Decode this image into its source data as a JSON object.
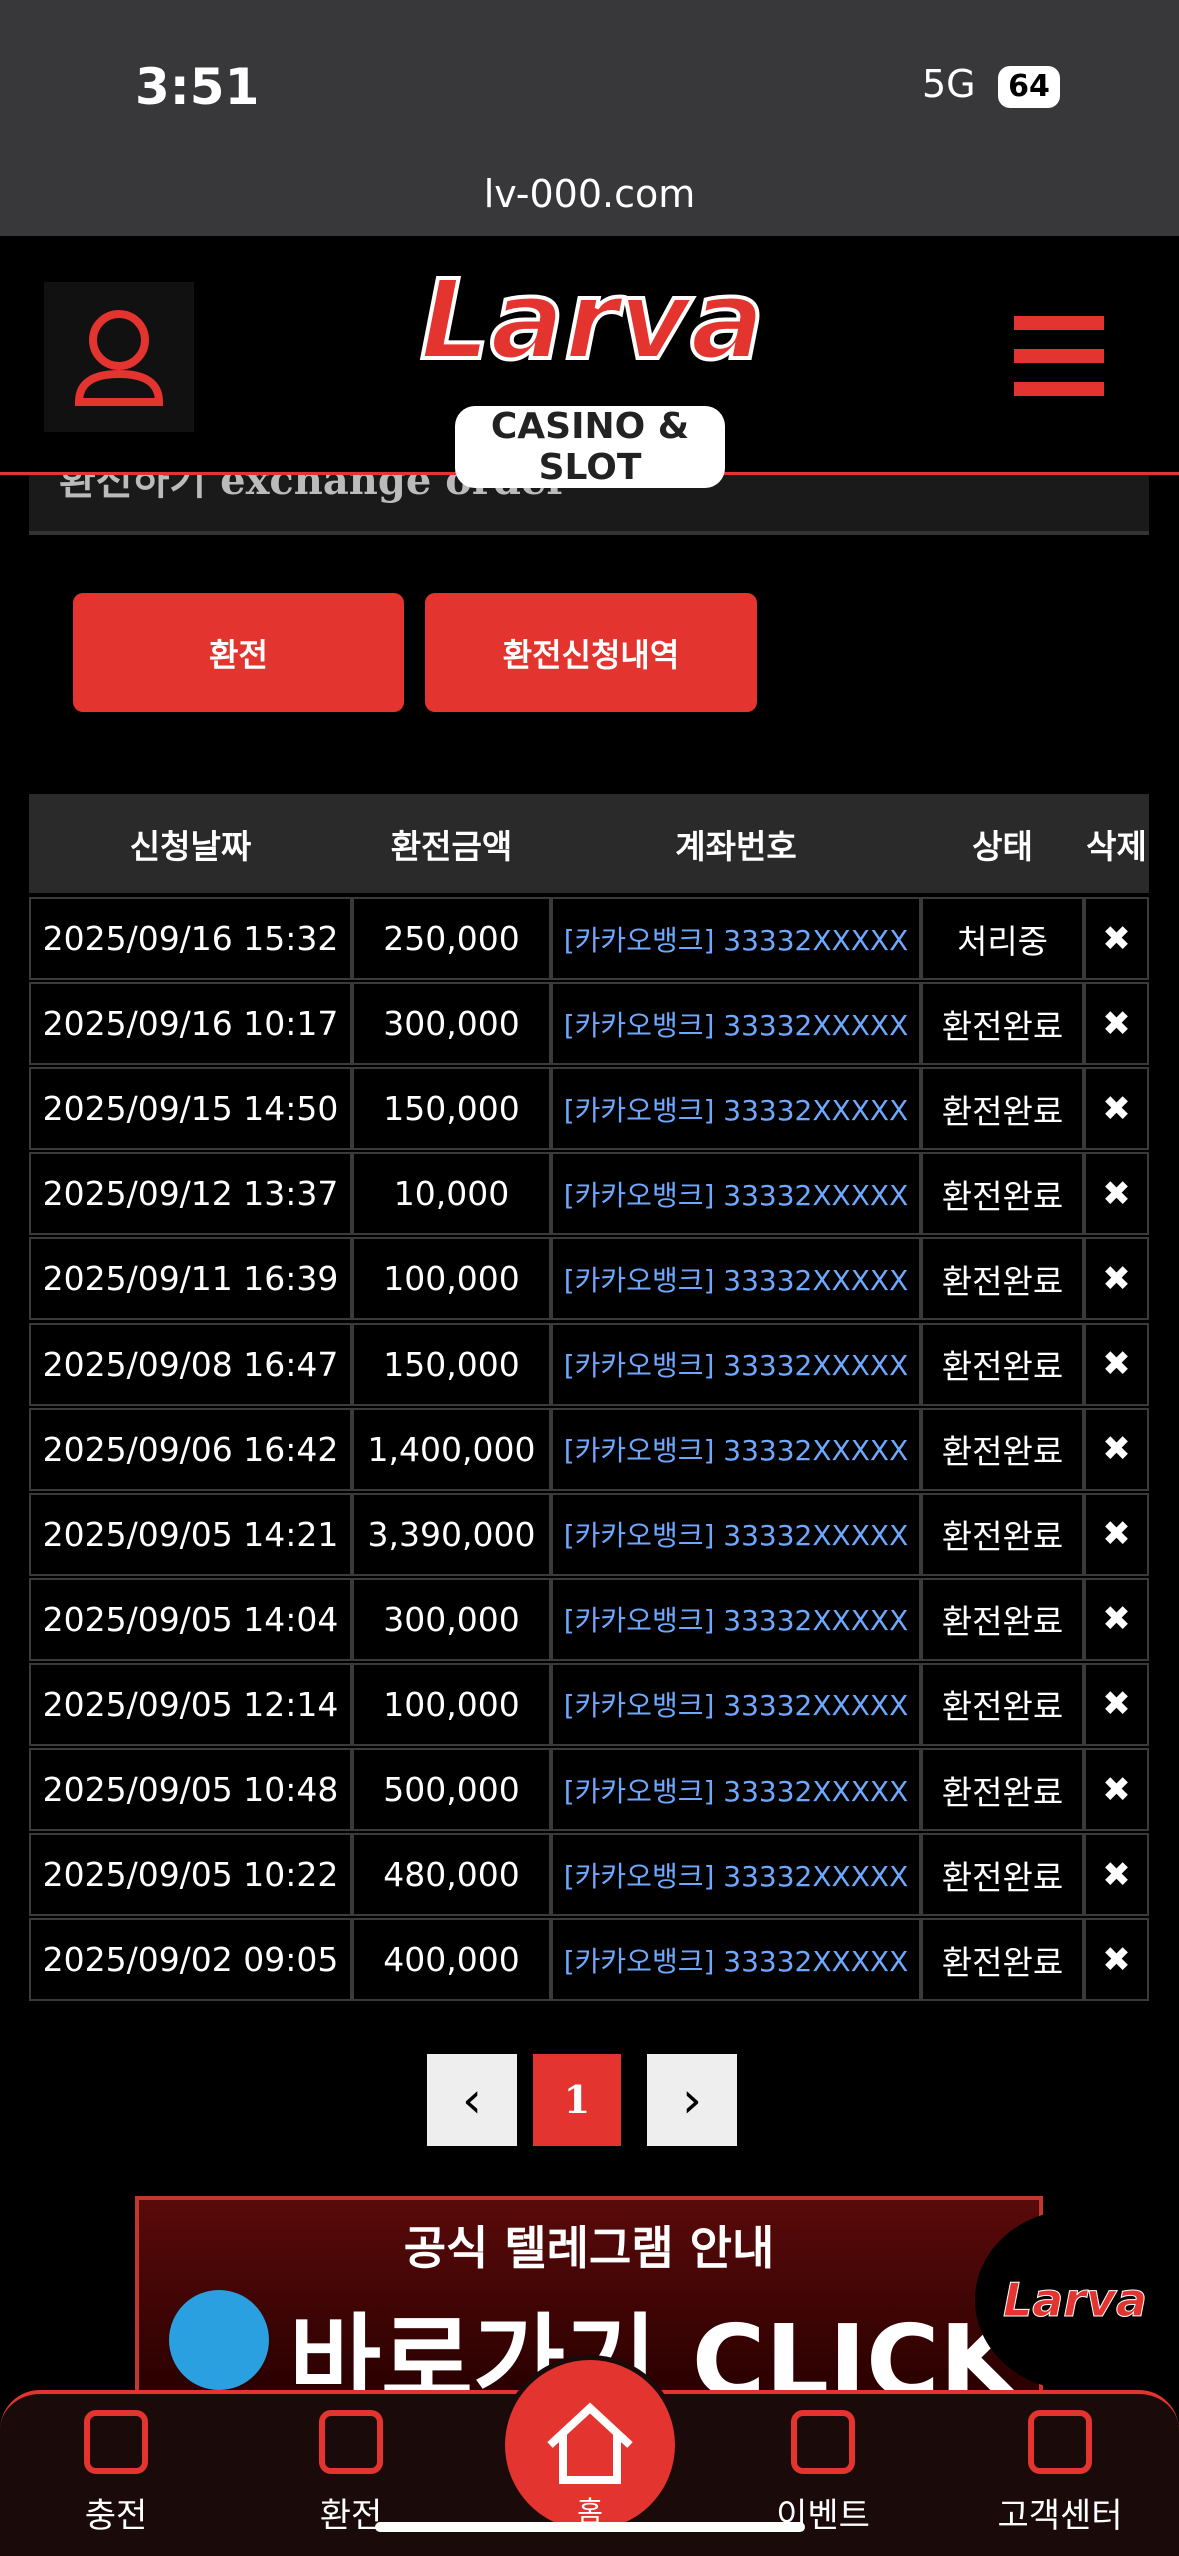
{
  "status_bar": {
    "time": "3:51",
    "network": "5G",
    "battery": "64"
  },
  "url": "lv-000.com",
  "header": {
    "logo": "Larva",
    "logo_sub": "CASINO & SLOT"
  },
  "page_title": "환전하기 exchange order",
  "buttons": [
    "환전",
    "환전신청내역"
  ],
  "table": {
    "headers": [
      "신청날짜",
      "환전금액",
      "계좌번호",
      "상태",
      "삭제"
    ],
    "rows": [
      [
        "2025/09/16 15:32",
        "250,000",
        "[카카오뱅크] 33332XXXXX",
        "처리중"
      ],
      [
        "2025/09/16 10:17",
        "300,000",
        "[카카오뱅크] 33332XXXXX",
        "환전완료"
      ],
      [
        "2025/09/15 14:50",
        "150,000",
        "[카카오뱅크] 33332XXXXX",
        "환전완료"
      ],
      [
        "2025/09/12 13:37",
        "10,000",
        "[카카오뱅크] 33332XXXXX",
        "환전완료"
      ],
      [
        "2025/09/11 16:39",
        "100,000",
        "[카카오뱅크] 33332XXXXX",
        "환전완료"
      ],
      [
        "2025/09/08 16:47",
        "150,000",
        "[카카오뱅크] 33332XXXXX",
        "환전완료"
      ],
      [
        "2025/09/06 16:42",
        "1,400,000",
        "[카카오뱅크] 33332XXXXX",
        "환전완료"
      ],
      [
        "2025/09/05 14:21",
        "3,390,000",
        "[카카오뱅크] 33332XXXXX",
        "환전완료"
      ],
      [
        "2025/09/05 14:04",
        "300,000",
        "[카카오뱅크] 33332XXXXX",
        "환전완료"
      ],
      [
        "2025/09/05 12:14",
        "100,000",
        "[카카오뱅크] 33332XXXXX",
        "환전완료"
      ],
      [
        "2025/09/05 10:48",
        "500,000",
        "[카카오뱅크] 33332XXXXX",
        "환전완료"
      ],
      [
        "2025/09/05 10:22",
        "480,000",
        "[카카오뱅크] 33332XXXXX",
        "환전완료"
      ],
      [
        "2025/09/02 09:05",
        "400,000",
        "[카카오뱅크] 33332XXXXX",
        "환전완료"
      ]
    ]
  },
  "pagination": {
    "current": "1"
  },
  "banner": {
    "line1": "공식 텔레그램 안내",
    "line2": "바로가기 CLICK",
    "badge": "Larva"
  },
  "nav": [
    "충전",
    "환전",
    "홈",
    "이벤트",
    "고객센터"
  ]
}
